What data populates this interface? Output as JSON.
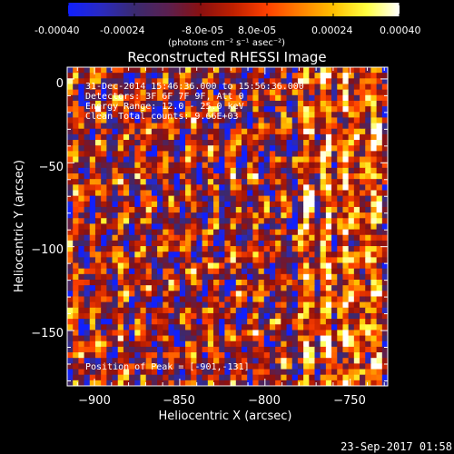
{
  "colorbar": {
    "tick_labels": [
      "-0.00040",
      "-0.00024",
      "-8.0e-05",
      "8.0e-05",
      "0.00024",
      "0.00040"
    ],
    "units_label": "(photons cm⁻² s⁻¹ asec⁻²)",
    "range": [
      -0.0004,
      0.0004
    ],
    "colors": [
      "#1020ff",
      "#2a2ac0",
      "#3a2a70",
      "#5a2050",
      "#8a1010",
      "#c02000",
      "#ff4000",
      "#ff8000",
      "#ffc000",
      "#ffff40",
      "#ffffff"
    ]
  },
  "chart_data": {
    "type": "heatmap",
    "title": "Reconstructed RHESSI Image",
    "xlabel": "Heliocentric X (arcsec)",
    "ylabel": "Heliocentric Y (arcsec)",
    "xlim": [
      -916,
      -728
    ],
    "ylim": [
      -183,
      7
    ],
    "x_ticks": [
      -900,
      -850,
      -800,
      -750
    ],
    "y_ticks": [
      0,
      -50,
      -100,
      -150
    ],
    "x_tick_labels": [
      "−900",
      "−850",
      "−800",
      "−750"
    ],
    "y_tick_labels": [
      "0",
      "−50",
      "−100",
      "−150"
    ],
    "annotations": [
      "31-Dec-2014 15:46:36.000 to 15:56:36.000",
      "Detectors: 3F 6F 7F 9F, Att 0",
      "Energy Range: 12.0 - 25.0 keV",
      "Clean    Total counts: 9.66E+03"
    ],
    "peak_label": "Position of Peak = [-901,-131]",
    "peak_position": [
      -901,
      -131
    ]
  },
  "footer": {
    "timestamp": "23-Sep-2017 01:58"
  }
}
